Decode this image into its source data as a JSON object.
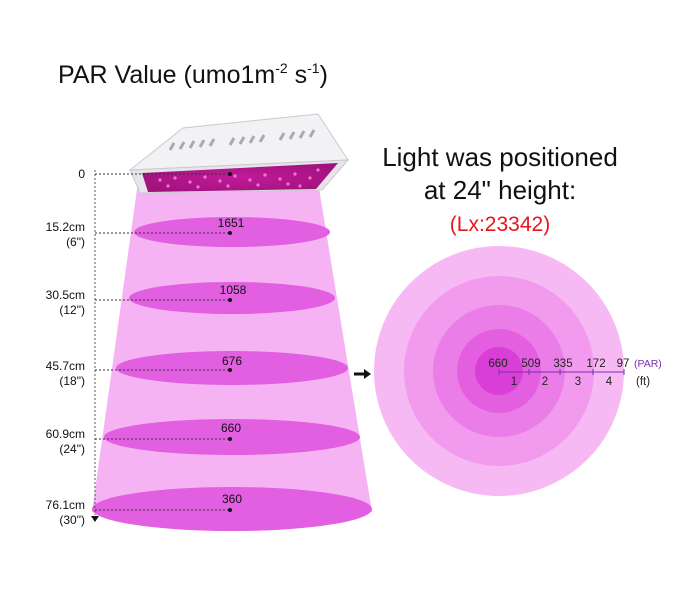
{
  "title": {
    "main": "PAR Value (umo1m",
    "sup1": "-2",
    "mid": " s",
    "sup2": "-1",
    "end": ")"
  },
  "headline": {
    "line1": "Light was positioned",
    "line2": "at 24\" height:",
    "lux": "(Lx:23342)"
  },
  "levels": [
    {
      "cm": "0",
      "inch": "",
      "par": ""
    },
    {
      "cm": "15.2cm",
      "inch": "(6\")",
      "par": "1651"
    },
    {
      "cm": "30.5cm",
      "inch": "(12\")",
      "par": "1058"
    },
    {
      "cm": "45.7cm",
      "inch": "(18\")",
      "par": "676"
    },
    {
      "cm": "60.9cm",
      "inch": "(24\")",
      "par": "660"
    },
    {
      "cm": "76.1cm",
      "inch": "(30\")",
      "par": "360"
    }
  ],
  "footprint": {
    "par_values": [
      "660",
      "509",
      "335",
      "172",
      "97"
    ],
    "par_unit": "(PAR)",
    "distances": [
      "1",
      "2",
      "3",
      "4"
    ],
    "distance_unit": "(ft)"
  },
  "colors": {
    "beam": "#f6b3f3",
    "disk": "#e15fe0",
    "ring_outer": "#f6b9f4",
    "ring_2": "#f29aee",
    "ring_3": "#eb7de8",
    "ring_4": "#e35fe0",
    "ring_center": "#d93fd7",
    "lux_red": "#e8141c",
    "unit_purple": "#7a2fb0"
  }
}
